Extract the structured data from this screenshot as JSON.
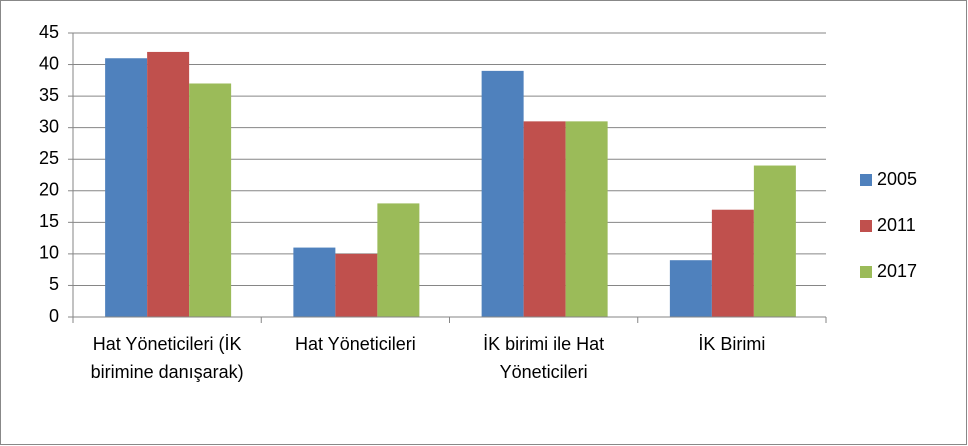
{
  "chart_data": {
    "type": "bar",
    "categories": [
      "Hat Yöneticileri (İK birimine danışarak)",
      "Hat Yöneticileri",
      "İK birimi ile Hat Yöneticileri",
      "İK Birimi"
    ],
    "series": [
      {
        "name": "2005",
        "color": "#4f81bd",
        "values": [
          41,
          11,
          39,
          9
        ]
      },
      {
        "name": "2011",
        "color": "#c0504d",
        "values": [
          42,
          10,
          31,
          17
        ]
      },
      {
        "name": "2017",
        "color": "#9bbb59",
        "values": [
          37,
          18,
          31,
          24
        ]
      }
    ],
    "ylim": [
      0,
      45
    ],
    "yticks": [
      0,
      5,
      10,
      15,
      20,
      25,
      30,
      35,
      40,
      45
    ],
    "grid": true,
    "legend": "right"
  }
}
